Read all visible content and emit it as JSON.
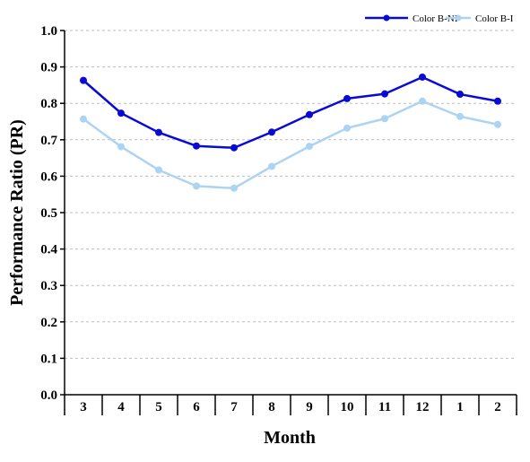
{
  "chart_data": {
    "type": "line",
    "title": "",
    "xlabel": "Month",
    "ylabel": "Performance Ratio (PR)",
    "categories": [
      "3",
      "4",
      "5",
      "6",
      "7",
      "8",
      "9",
      "10",
      "11",
      "12",
      "1",
      "2"
    ],
    "ylim": [
      0,
      1.0
    ],
    "yticks": [
      "0.0",
      "0.1",
      "0.2",
      "0.3",
      "0.4",
      "0.5",
      "0.6",
      "0.7",
      "0.8",
      "0.9",
      "1.0"
    ],
    "grid": "horizontal dashed",
    "legend_position": "top-right",
    "series": [
      {
        "name": "Color B-NI",
        "color": "#0a0ad6",
        "values": [
          0.863,
          0.773,
          0.72,
          0.683,
          0.678,
          0.721,
          0.769,
          0.813,
          0.826,
          0.872,
          0.825,
          0.806
        ]
      },
      {
        "name": "Color B-I",
        "color": "#add3f2",
        "values": [
          0.757,
          0.681,
          0.617,
          0.573,
          0.567,
          0.627,
          0.682,
          0.732,
          0.758,
          0.806,
          0.764,
          0.742
        ]
      }
    ]
  }
}
